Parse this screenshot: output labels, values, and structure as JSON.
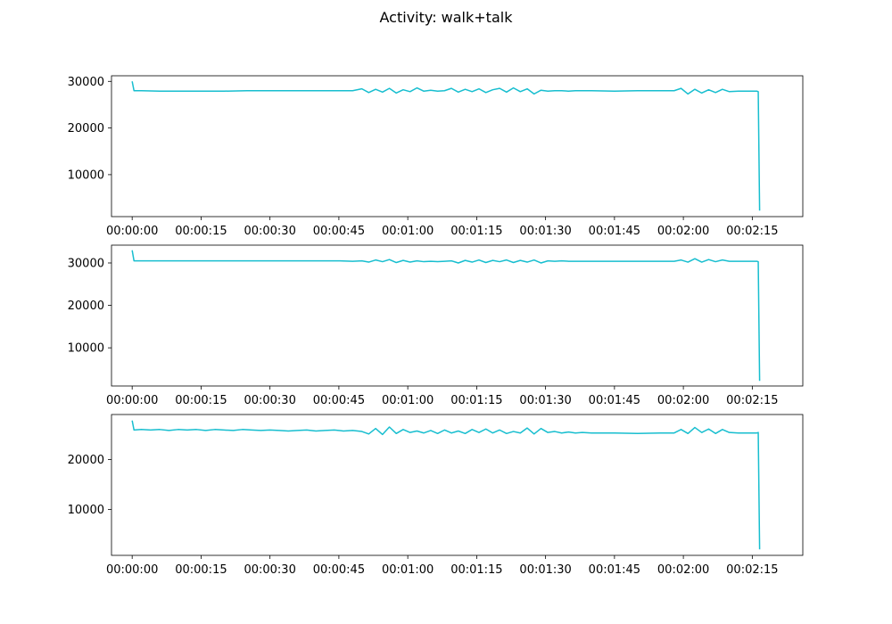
{
  "figure": {
    "title": "Activity: walk+talk",
    "line_color": "#17becf"
  },
  "chart_data": [
    {
      "type": "line",
      "title": "",
      "xlabel": "",
      "ylabel": "",
      "x_ticks": [
        "00:00:00",
        "00:00:15",
        "00:00:30",
        "00:00:45",
        "00:01:00",
        "00:01:15",
        "00:01:30",
        "00:01:45",
        "00:02:00",
        "00:02:15"
      ],
      "xlim": [
        -4.5,
        146
      ],
      "ylim": [
        1000,
        31200
      ],
      "y_ticks": [
        10000,
        20000,
        30000
      ],
      "grid": false,
      "series": [
        {
          "color": "#17becf",
          "x": [
            0,
            0.4,
            2,
            6,
            10,
            15,
            20,
            25,
            30,
            35,
            40,
            45,
            48,
            50,
            51.5,
            53,
            54.5,
            56,
            57.5,
            59,
            60.5,
            62,
            63.5,
            65,
            66.5,
            68,
            69.5,
            71,
            72.5,
            74,
            75.5,
            77,
            78.5,
            80,
            81.5,
            83,
            84.5,
            86,
            87.5,
            89,
            90.5,
            92,
            93.5,
            95,
            96.5,
            98,
            100,
            105,
            110,
            115,
            118,
            119.5,
            121,
            122.5,
            124,
            125.5,
            127,
            128.5,
            130,
            132,
            134,
            136,
            136.3,
            136.6
          ],
          "y": [
            30000,
            28000,
            28000,
            27900,
            27900,
            27900,
            27900,
            28000,
            28000,
            28000,
            28000,
            28000,
            28000,
            28400,
            27600,
            28300,
            27700,
            28500,
            27500,
            28200,
            27800,
            28600,
            27900,
            28100,
            27900,
            28000,
            28500,
            27700,
            28300,
            27800,
            28400,
            27600,
            28200,
            28500,
            27700,
            28600,
            27800,
            28400,
            27300,
            28100,
            27900,
            28000,
            28000,
            27900,
            28000,
            28000,
            28000,
            27900,
            28000,
            28000,
            28000,
            28500,
            27300,
            28300,
            27500,
            28200,
            27600,
            28300,
            27800,
            27900,
            27900,
            27900,
            27800,
            2300
          ]
        }
      ]
    },
    {
      "type": "line",
      "title": "",
      "xlabel": "",
      "ylabel": "",
      "x_ticks": [
        "00:00:00",
        "00:00:15",
        "00:00:30",
        "00:00:45",
        "00:01:00",
        "00:01:15",
        "00:01:30",
        "00:01:45",
        "00:02:00",
        "00:02:15"
      ],
      "xlim": [
        -4.5,
        146
      ],
      "ylim": [
        1000,
        34200
      ],
      "y_ticks": [
        10000,
        20000,
        30000
      ],
      "grid": false,
      "series": [
        {
          "color": "#17becf",
          "x": [
            0,
            0.4,
            2,
            6,
            10,
            15,
            20,
            25,
            30,
            35,
            40,
            45,
            48,
            50,
            51.5,
            53,
            54.5,
            56,
            57.5,
            59,
            60.5,
            62,
            63.5,
            65,
            66.5,
            68,
            69.5,
            71,
            72.5,
            74,
            75.5,
            77,
            78.5,
            80,
            81.5,
            83,
            84.5,
            86,
            87.5,
            89,
            90.5,
            92,
            93.5,
            95,
            96.5,
            98,
            100,
            105,
            110,
            115,
            118,
            119.5,
            121,
            122.5,
            124,
            125.5,
            127,
            128.5,
            130,
            132,
            134,
            136,
            136.3,
            136.6
          ],
          "y": [
            33000,
            30500,
            30500,
            30500,
            30500,
            30500,
            30500,
            30500,
            30500,
            30500,
            30500,
            30500,
            30400,
            30500,
            30200,
            30700,
            30300,
            30800,
            30100,
            30600,
            30200,
            30500,
            30300,
            30400,
            30300,
            30400,
            30500,
            30000,
            30600,
            30200,
            30700,
            30100,
            30600,
            30300,
            30700,
            30100,
            30600,
            30200,
            30700,
            30000,
            30500,
            30400,
            30500,
            30400,
            30400,
            30400,
            30400,
            30400,
            30400,
            30400,
            30400,
            30700,
            30200,
            31000,
            30200,
            30800,
            30300,
            30700,
            30400,
            30400,
            30400,
            30400,
            30300,
            2200
          ]
        }
      ]
    },
    {
      "type": "line",
      "title": "",
      "xlabel": "",
      "ylabel": "",
      "x_ticks": [
        "00:00:00",
        "00:00:15",
        "00:00:30",
        "00:00:45",
        "00:01:00",
        "00:01:15",
        "00:01:30",
        "00:01:45",
        "00:02:00",
        "00:02:15"
      ],
      "xlim": [
        -4.5,
        146
      ],
      "ylim": [
        800,
        29000
      ],
      "y_ticks": [
        10000,
        20000
      ],
      "grid": false,
      "series": [
        {
          "color": "#17becf",
          "x": [
            0,
            0.4,
            2,
            4,
            6,
            8,
            10,
            12,
            14,
            16,
            18,
            20,
            22,
            24,
            26,
            28,
            30,
            32,
            34,
            36,
            38,
            40,
            42,
            44,
            46,
            48,
            50,
            51.5,
            53,
            54.5,
            56,
            57.5,
            59,
            60.5,
            62,
            63.5,
            65,
            66.5,
            68,
            69.5,
            71,
            72.5,
            74,
            75.5,
            77,
            78.5,
            80,
            81.5,
            83,
            84.5,
            86,
            87.5,
            89,
            90.5,
            92,
            93.5,
            95,
            96.5,
            98,
            100,
            105,
            110,
            115,
            118,
            119.5,
            121,
            122.5,
            124,
            125.5,
            127,
            128.5,
            130,
            132,
            134,
            136,
            136.3,
            136.6
          ],
          "y": [
            27800,
            25900,
            26000,
            25900,
            26000,
            25800,
            26000,
            25900,
            26000,
            25800,
            26000,
            25900,
            25800,
            26000,
            25900,
            25800,
            25900,
            25800,
            25700,
            25800,
            25900,
            25700,
            25800,
            25900,
            25700,
            25800,
            25600,
            25100,
            26200,
            25000,
            26500,
            25200,
            26000,
            25400,
            25700,
            25300,
            25800,
            25200,
            25900,
            25300,
            25700,
            25200,
            26000,
            25400,
            26100,
            25300,
            25900,
            25200,
            25600,
            25300,
            26300,
            25100,
            26200,
            25400,
            25600,
            25300,
            25500,
            25300,
            25400,
            25300,
            25300,
            25200,
            25300,
            25300,
            26000,
            25200,
            26400,
            25400,
            26100,
            25200,
            26000,
            25400,
            25300,
            25300,
            25300,
            25400,
            2000
          ]
        }
      ]
    }
  ]
}
